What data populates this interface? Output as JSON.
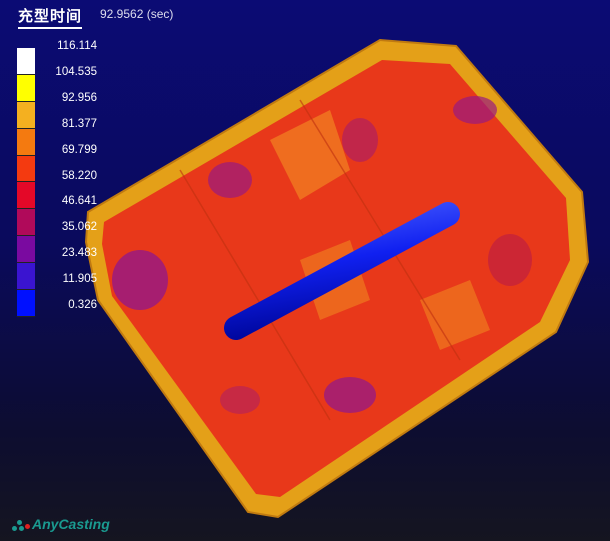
{
  "header": {
    "title": "充型时间",
    "value": "92.9562 (sec)"
  },
  "legend": {
    "labels": [
      "116.114",
      "104.535",
      "92.956",
      "81.377",
      "69.799",
      "58.220",
      "46.641",
      "35.062",
      "23.483",
      "11.905",
      "0.326"
    ],
    "colors": [
      "#ffffff",
      "#ffff00",
      "#f4b020",
      "#f47a10",
      "#f43a10",
      "#e40828",
      "#b00a5a",
      "#7a0aa0",
      "#3a14d0",
      "#0010ff"
    ]
  },
  "logo": {
    "text": "AnyCasting"
  }
}
